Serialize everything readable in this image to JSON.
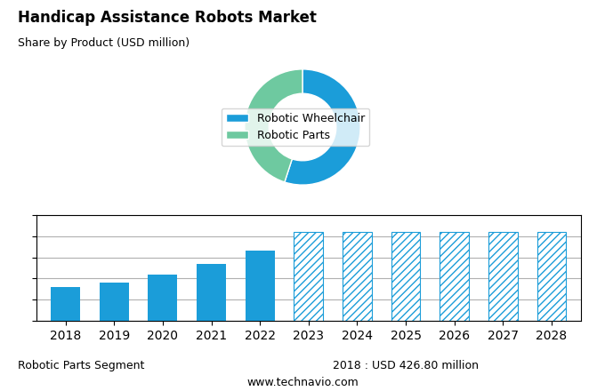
{
  "chart_data": [
    {
      "type": "pie",
      "title": "Handicap Assistance Robots Market",
      "subtitle": "Share by Product (USD million)",
      "categories": [
        "Robotic Wheelchair",
        "Robotic Parts"
      ],
      "values": [
        55,
        45
      ],
      "colors": [
        "#1b9dd9",
        "#6ec9a0"
      ],
      "legend": "center right"
    },
    {
      "type": "bar",
      "categories": [
        "2018",
        "2019",
        "2020",
        "2021",
        "2022",
        "2023",
        "2024",
        "2025",
        "2026",
        "2027",
        "2028"
      ],
      "series": [
        {
          "color": "#1b9dd9",
          "values": [
            0.32,
            0.36,
            0.44,
            0.54,
            0.66,
            null,
            null,
            null,
            null,
            null,
            null
          ]
        },
        {
          "color": "#1b9dd9",
          "values": [
            null,
            null,
            null,
            null,
            null,
            0.84,
            0.84,
            0.84,
            0.84,
            0.84,
            0.84
          ]
        }
      ],
      "ylim": [
        0,
        1.0
      ],
      "yticks": [
        0,
        0.2,
        0.4,
        0.6,
        0.8,
        1.0
      ],
      "grid": true,
      "tick_labels": "x",
      "annotations": [
        "Robotic Parts Segment",
        "2018 : USD 426.80 million",
        "www.technavio.com"
      ]
    }
  ]
}
